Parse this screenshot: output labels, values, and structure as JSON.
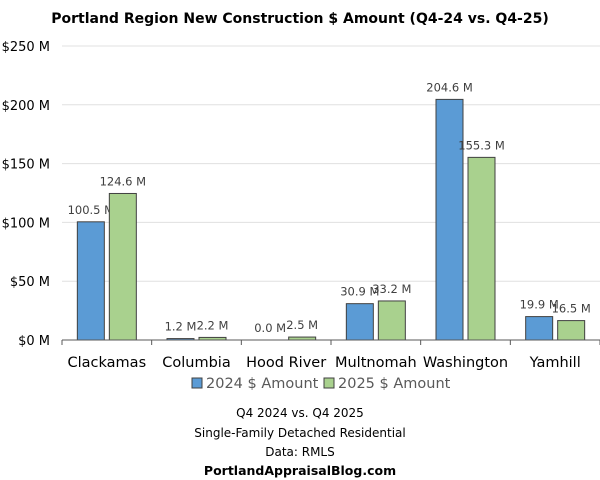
{
  "chart_data": {
    "type": "bar",
    "title": "Portland Region New Construction $ Amount (Q4-24 vs. Q4-25)",
    "categories": [
      "Clackamas",
      "Columbia",
      "Hood River",
      "Multnomah",
      "Washington",
      "Yamhill"
    ],
    "series": [
      {
        "name": "2024 $ Amount",
        "color": "#5b9bd5",
        "values": [
          100.5,
          1.2,
          0.0,
          30.9,
          204.6,
          19.9
        ],
        "labels": [
          "100.5 M",
          "1.2 M",
          "0.0 M",
          "30.9 M",
          "204.6 M",
          "19.9 M"
        ]
      },
      {
        "name": "2025 $ Amount",
        "color": "#a9d18e",
        "values": [
          124.6,
          2.2,
          2.5,
          33.2,
          155.3,
          16.5
        ],
        "labels": [
          "124.6 M",
          "2.2 M",
          "2.5 M",
          "33.2 M",
          "155.3 M",
          "16.5 M"
        ]
      }
    ],
    "ylim": [
      0,
      250
    ],
    "yticks": [
      0,
      50,
      100,
      150,
      200,
      250
    ],
    "ytick_labels": [
      "$0 M",
      "$50 M",
      "$100 M",
      "$150 M",
      "$200 M",
      "$250 M"
    ],
    "xlabel": "",
    "ylabel": "",
    "grid": true,
    "legend_position": "bottom"
  },
  "notes": {
    "line1": "Q4 2024 vs. Q4 2025",
    "line2": "Single-Family Detached Residential",
    "line3": "Data: RMLS",
    "site": "PortlandAppraisalBlog.com"
  }
}
